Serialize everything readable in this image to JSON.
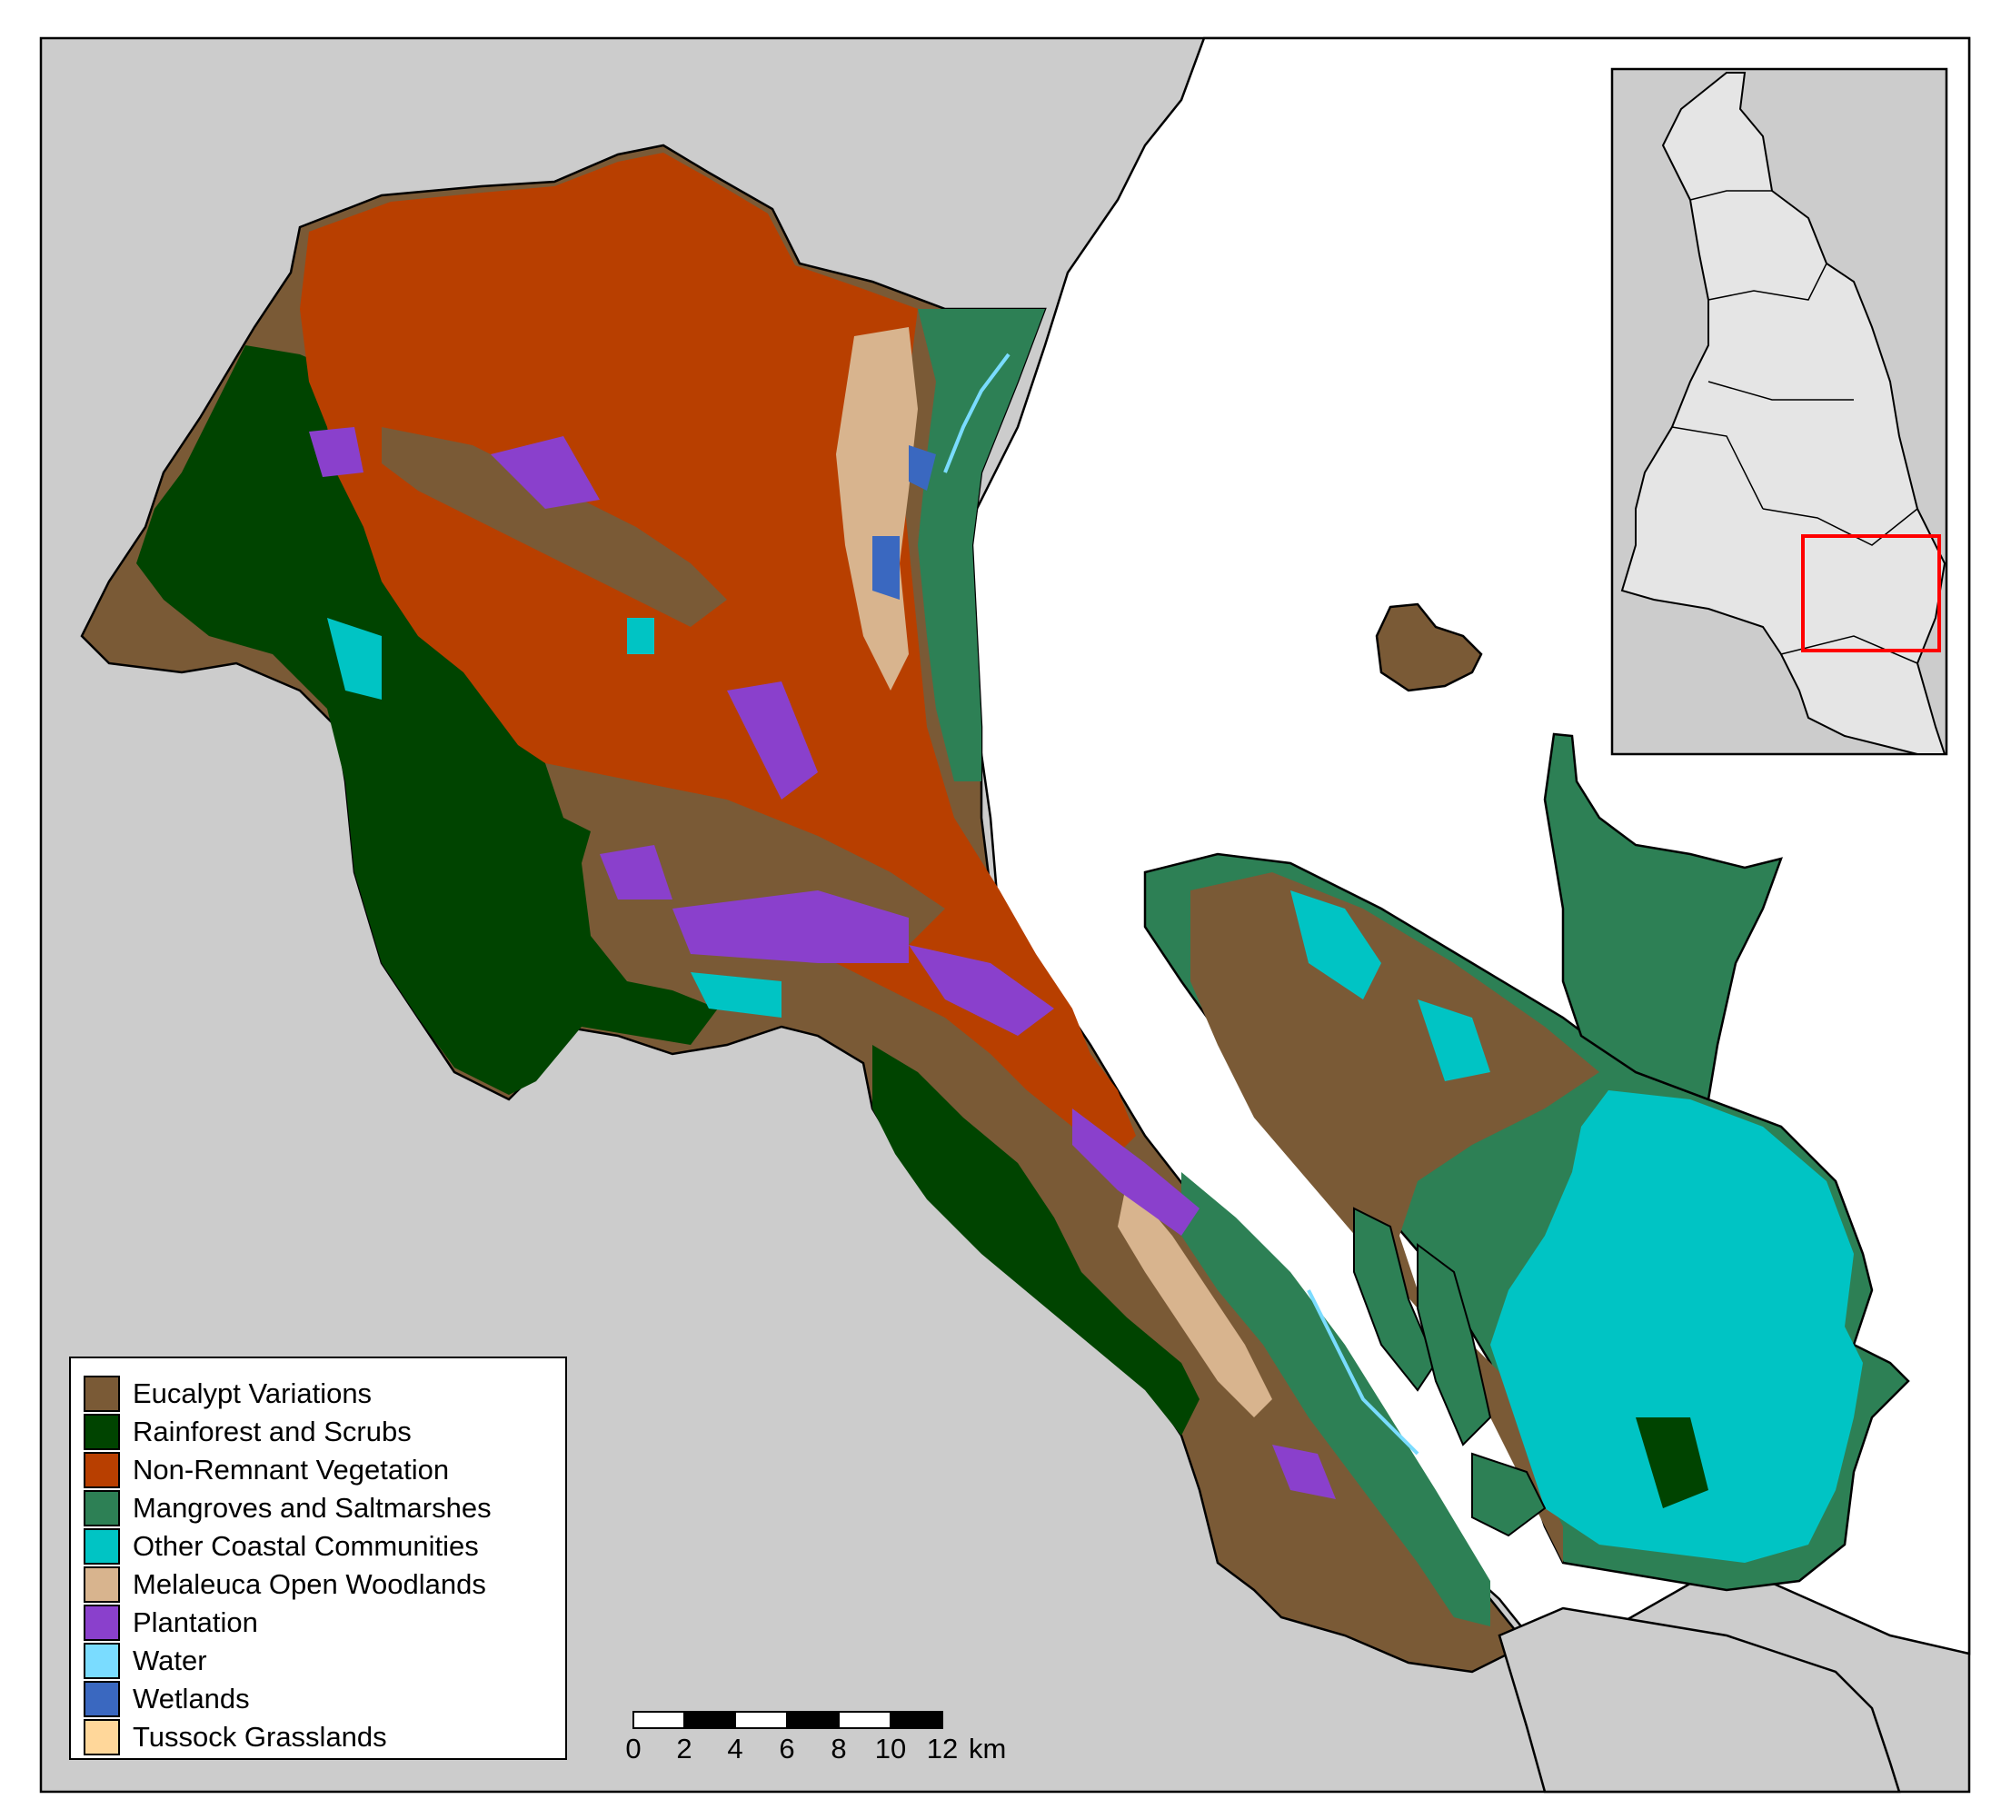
{
  "map": {
    "background_color": "#cccccc",
    "sea_color": "#ffffff"
  },
  "legend": {
    "items": [
      {
        "label": "Eucalypt Variations",
        "color": "#7a5a36"
      },
      {
        "label": "Rainforest and Scrubs",
        "color": "#004400"
      },
      {
        "label": "Non-Remnant Vegetation",
        "color": "#b83f00"
      },
      {
        "label": "Mangroves and Saltmarshes",
        "color": "#2d8055"
      },
      {
        "label": "Other Coastal Communities",
        "color": "#00c4c4"
      },
      {
        "label": "Melaleuca Open Woodlands",
        "color": "#d8b48e"
      },
      {
        "label": "Plantation",
        "color": "#8a40cc"
      },
      {
        "label": "Water",
        "color": "#7adcff"
      },
      {
        "label": "Wetlands",
        "color": "#3a68c0"
      },
      {
        "label": "Tussock Grasslands",
        "color": "#ffd79a"
      }
    ]
  },
  "scale_bar": {
    "ticks": [
      "0",
      "2",
      "4",
      "6",
      "8",
      "10",
      "12"
    ],
    "unit": "km"
  },
  "inset": {
    "highlight_color": "#ff0000"
  }
}
